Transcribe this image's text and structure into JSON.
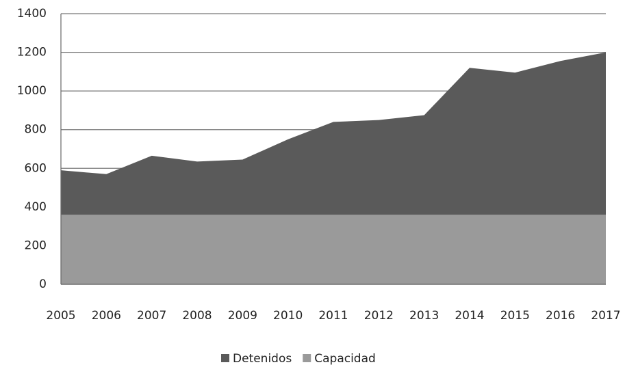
{
  "chart_data": {
    "type": "area",
    "categories": [
      "2005",
      "2006",
      "2007",
      "2008",
      "2009",
      "2010",
      "2011",
      "2012",
      "2013",
      "2014",
      "2015",
      "2016",
      "2017"
    ],
    "series": [
      {
        "name": "Detenidos",
        "color": "#5a5a5a",
        "values": [
          590,
          570,
          665,
          635,
          645,
          750,
          840,
          850,
          875,
          1120,
          1095,
          1155,
          1200
        ]
      },
      {
        "name": "Capacidad",
        "color": "#9a9a9a",
        "values": [
          360,
          360,
          360,
          360,
          360,
          360,
          360,
          360,
          360,
          360,
          360,
          360,
          360
        ]
      }
    ],
    "ylim": [
      0,
      1400
    ],
    "yticks": [
      0,
      200,
      400,
      600,
      800,
      1000,
      1200,
      1400
    ],
    "grid": true,
    "legend": "bottom"
  }
}
